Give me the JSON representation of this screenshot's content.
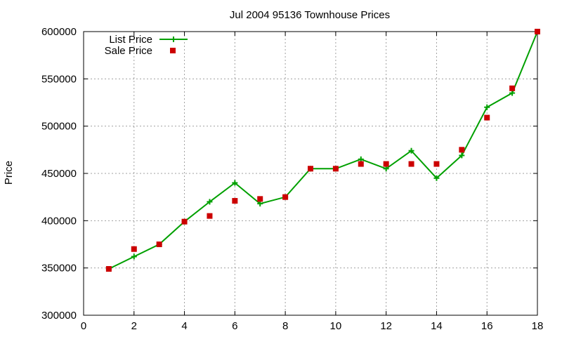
{
  "chart_data": {
    "type": "line",
    "title": "Jul 2004 95136 Townhouse Prices",
    "xlabel": "",
    "ylabel": "Price",
    "xlim": [
      0,
      18
    ],
    "ylim": [
      300000,
      600000
    ],
    "xticks": [
      0,
      2,
      4,
      6,
      8,
      10,
      12,
      14,
      16,
      18
    ],
    "yticks": [
      300000,
      350000,
      400000,
      450000,
      500000,
      550000,
      600000
    ],
    "grid": true,
    "legend_position": "top-left",
    "series": [
      {
        "name": "List Price",
        "style": "line-with-plus-markers",
        "color": "#00a000",
        "x": [
          1,
          2,
          3,
          4,
          5,
          6,
          7,
          8,
          9,
          10,
          11,
          12,
          13,
          14,
          15,
          16,
          17,
          18
        ],
        "y": [
          349000,
          362000,
          375000,
          399000,
          420000,
          440000,
          418000,
          425000,
          455000,
          455000,
          465000,
          455000,
          474000,
          445000,
          469000,
          520000,
          535000,
          600000
        ]
      },
      {
        "name": "Sale Price",
        "style": "square-markers",
        "color": "#cc0000",
        "x": [
          1,
          2,
          3,
          4,
          5,
          6,
          7,
          8,
          9,
          10,
          11,
          12,
          13,
          14,
          15,
          16,
          17,
          18
        ],
        "y": [
          349000,
          370000,
          375000,
          399000,
          405000,
          421000,
          423000,
          425000,
          455000,
          455000,
          460000,
          460000,
          460000,
          460000,
          475000,
          509000,
          540000,
          600000
        ]
      }
    ]
  }
}
